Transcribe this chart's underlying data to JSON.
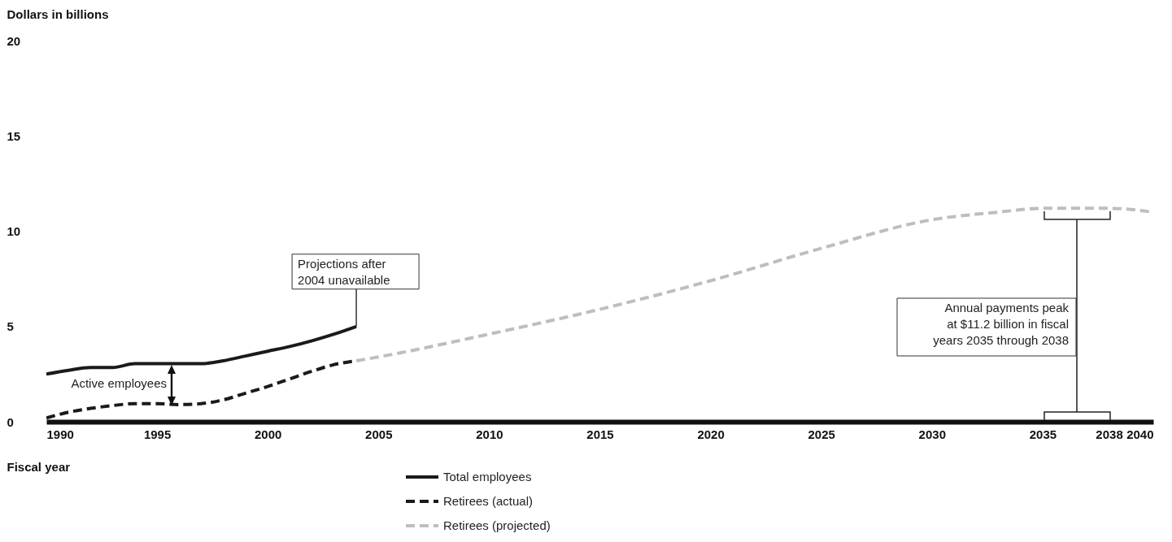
{
  "chart_data": {
    "type": "line",
    "xlabel": "Fiscal year",
    "ylabel": "Dollars in billions",
    "xlim": [
      1990,
      2040
    ],
    "xticks": [
      1990,
      1995,
      2000,
      2005,
      2010,
      2015,
      2020,
      2025,
      2030,
      2035,
      2038,
      2040
    ],
    "ylim": [
      0,
      20
    ],
    "yticks": [
      0,
      5,
      10,
      15,
      20
    ],
    "grid": false,
    "legend": "bottom",
    "marker": "none",
    "series": [
      {
        "name": "Total employees",
        "color": "#1a1a1a",
        "line_style": "solid",
        "x": [
          1990,
          1991,
          1992,
          1993,
          1994,
          1995,
          1996,
          1997,
          1998,
          1999,
          2000,
          2001,
          2002,
          2003,
          2004
        ],
        "values": [
          2.5,
          2.7,
          2.85,
          2.85,
          3.05,
          3.05,
          3.05,
          3.05,
          3.2,
          3.45,
          3.7,
          3.95,
          4.25,
          4.6,
          5.0
        ]
      },
      {
        "name": "Retirees (actual)",
        "color": "#1a1a1a",
        "line_style": "dashed",
        "x": [
          1990,
          1991,
          1992,
          1993,
          1994,
          1995,
          1996,
          1997,
          1998,
          1999,
          2000,
          2001,
          2002,
          2003,
          2004
        ],
        "values": [
          0.2,
          0.5,
          0.7,
          0.85,
          0.95,
          0.95,
          0.9,
          0.95,
          1.15,
          1.5,
          1.85,
          2.25,
          2.65,
          3.0,
          3.2
        ]
      },
      {
        "name": "Retirees (projected)",
        "color": "#bdbec0",
        "line_style": "dashed",
        "x": [
          2004,
          2005,
          2010,
          2015,
          2020,
          2025,
          2030,
          2033,
          2035,
          2038,
          2040
        ],
        "values": [
          3.2,
          3.4,
          4.6,
          5.9,
          7.4,
          9.1,
          10.6,
          11.0,
          11.2,
          11.2,
          11.0
        ]
      }
    ],
    "annotations": [
      {
        "text": "Projections after\n2004 unavailable",
        "x": 2004,
        "y": 5.0
      },
      "Active employees",
      "Annual payments peak\nat $11.2 billion in fiscal\nyears 2035 through 2038"
    ]
  }
}
